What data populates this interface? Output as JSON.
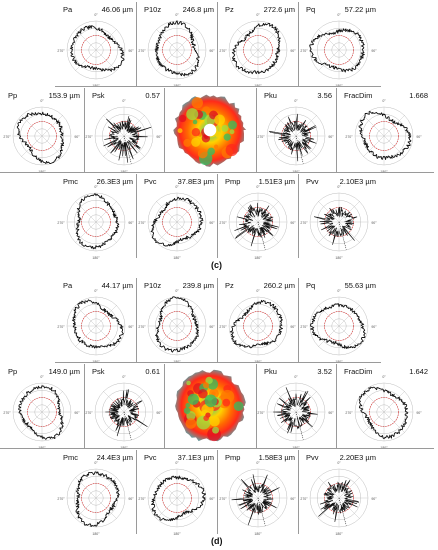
{
  "colors": {
    "profile": "#111111",
    "reference": "#e03030",
    "grid": "#bdbdbd",
    "divider": "#9a9a9a"
  },
  "panels": [
    {
      "caption": "(c)",
      "cells": [
        {
          "label": "Pa",
          "value": "46.06 µm"
        },
        {
          "label": "P10z",
          "value": "246.8 µm"
        },
        {
          "label": "Pz",
          "value": "272.6 µm"
        },
        {
          "label": "Pq",
          "value": "57.22 µm"
        },
        {
          "label": "Pp",
          "value": "153.9 µm"
        },
        {
          "label": "Psk",
          "value": "0.57"
        },
        {
          "label": "Pku",
          "value": "3.56"
        },
        {
          "label": "FracDim",
          "value": "1.668"
        },
        {
          "label": "Pmc",
          "value": "26.3E3 µm"
        },
        {
          "label": "Pvc",
          "value": "37.8E3 µm"
        },
        {
          "label": "Pmp",
          "value": "1.51E3 µm"
        },
        {
          "label": "Pvv",
          "value": "2.10E3 µm"
        }
      ]
    },
    {
      "caption": "(d)",
      "cells": [
        {
          "label": "Pa",
          "value": "44.17 µm"
        },
        {
          "label": "P10z",
          "value": "239.8 µm"
        },
        {
          "label": "Pz",
          "value": "260.2 µm"
        },
        {
          "label": "Pq",
          "value": "55.63 µm"
        },
        {
          "label": "Pp",
          "value": "149.0 µm"
        },
        {
          "label": "Psk",
          "value": "0.61"
        },
        {
          "label": "Pku",
          "value": "3.52"
        },
        {
          "label": "FracDim",
          "value": "1.642"
        },
        {
          "label": "Pmc",
          "value": "24.4E3 µm"
        },
        {
          "label": "Pvc",
          "value": "37.1E3 µm"
        },
        {
          "label": "Pmp",
          "value": "1.58E3 µm"
        },
        {
          "label": "Pvv",
          "value": "2.20E3 µm"
        }
      ]
    }
  ],
  "chart_data": {
    "type": "polar",
    "angle_ticks": [
      "0°",
      "45°",
      "90°",
      "135°",
      "180°",
      "225°",
      "270°",
      "315°"
    ],
    "grid": true
  }
}
